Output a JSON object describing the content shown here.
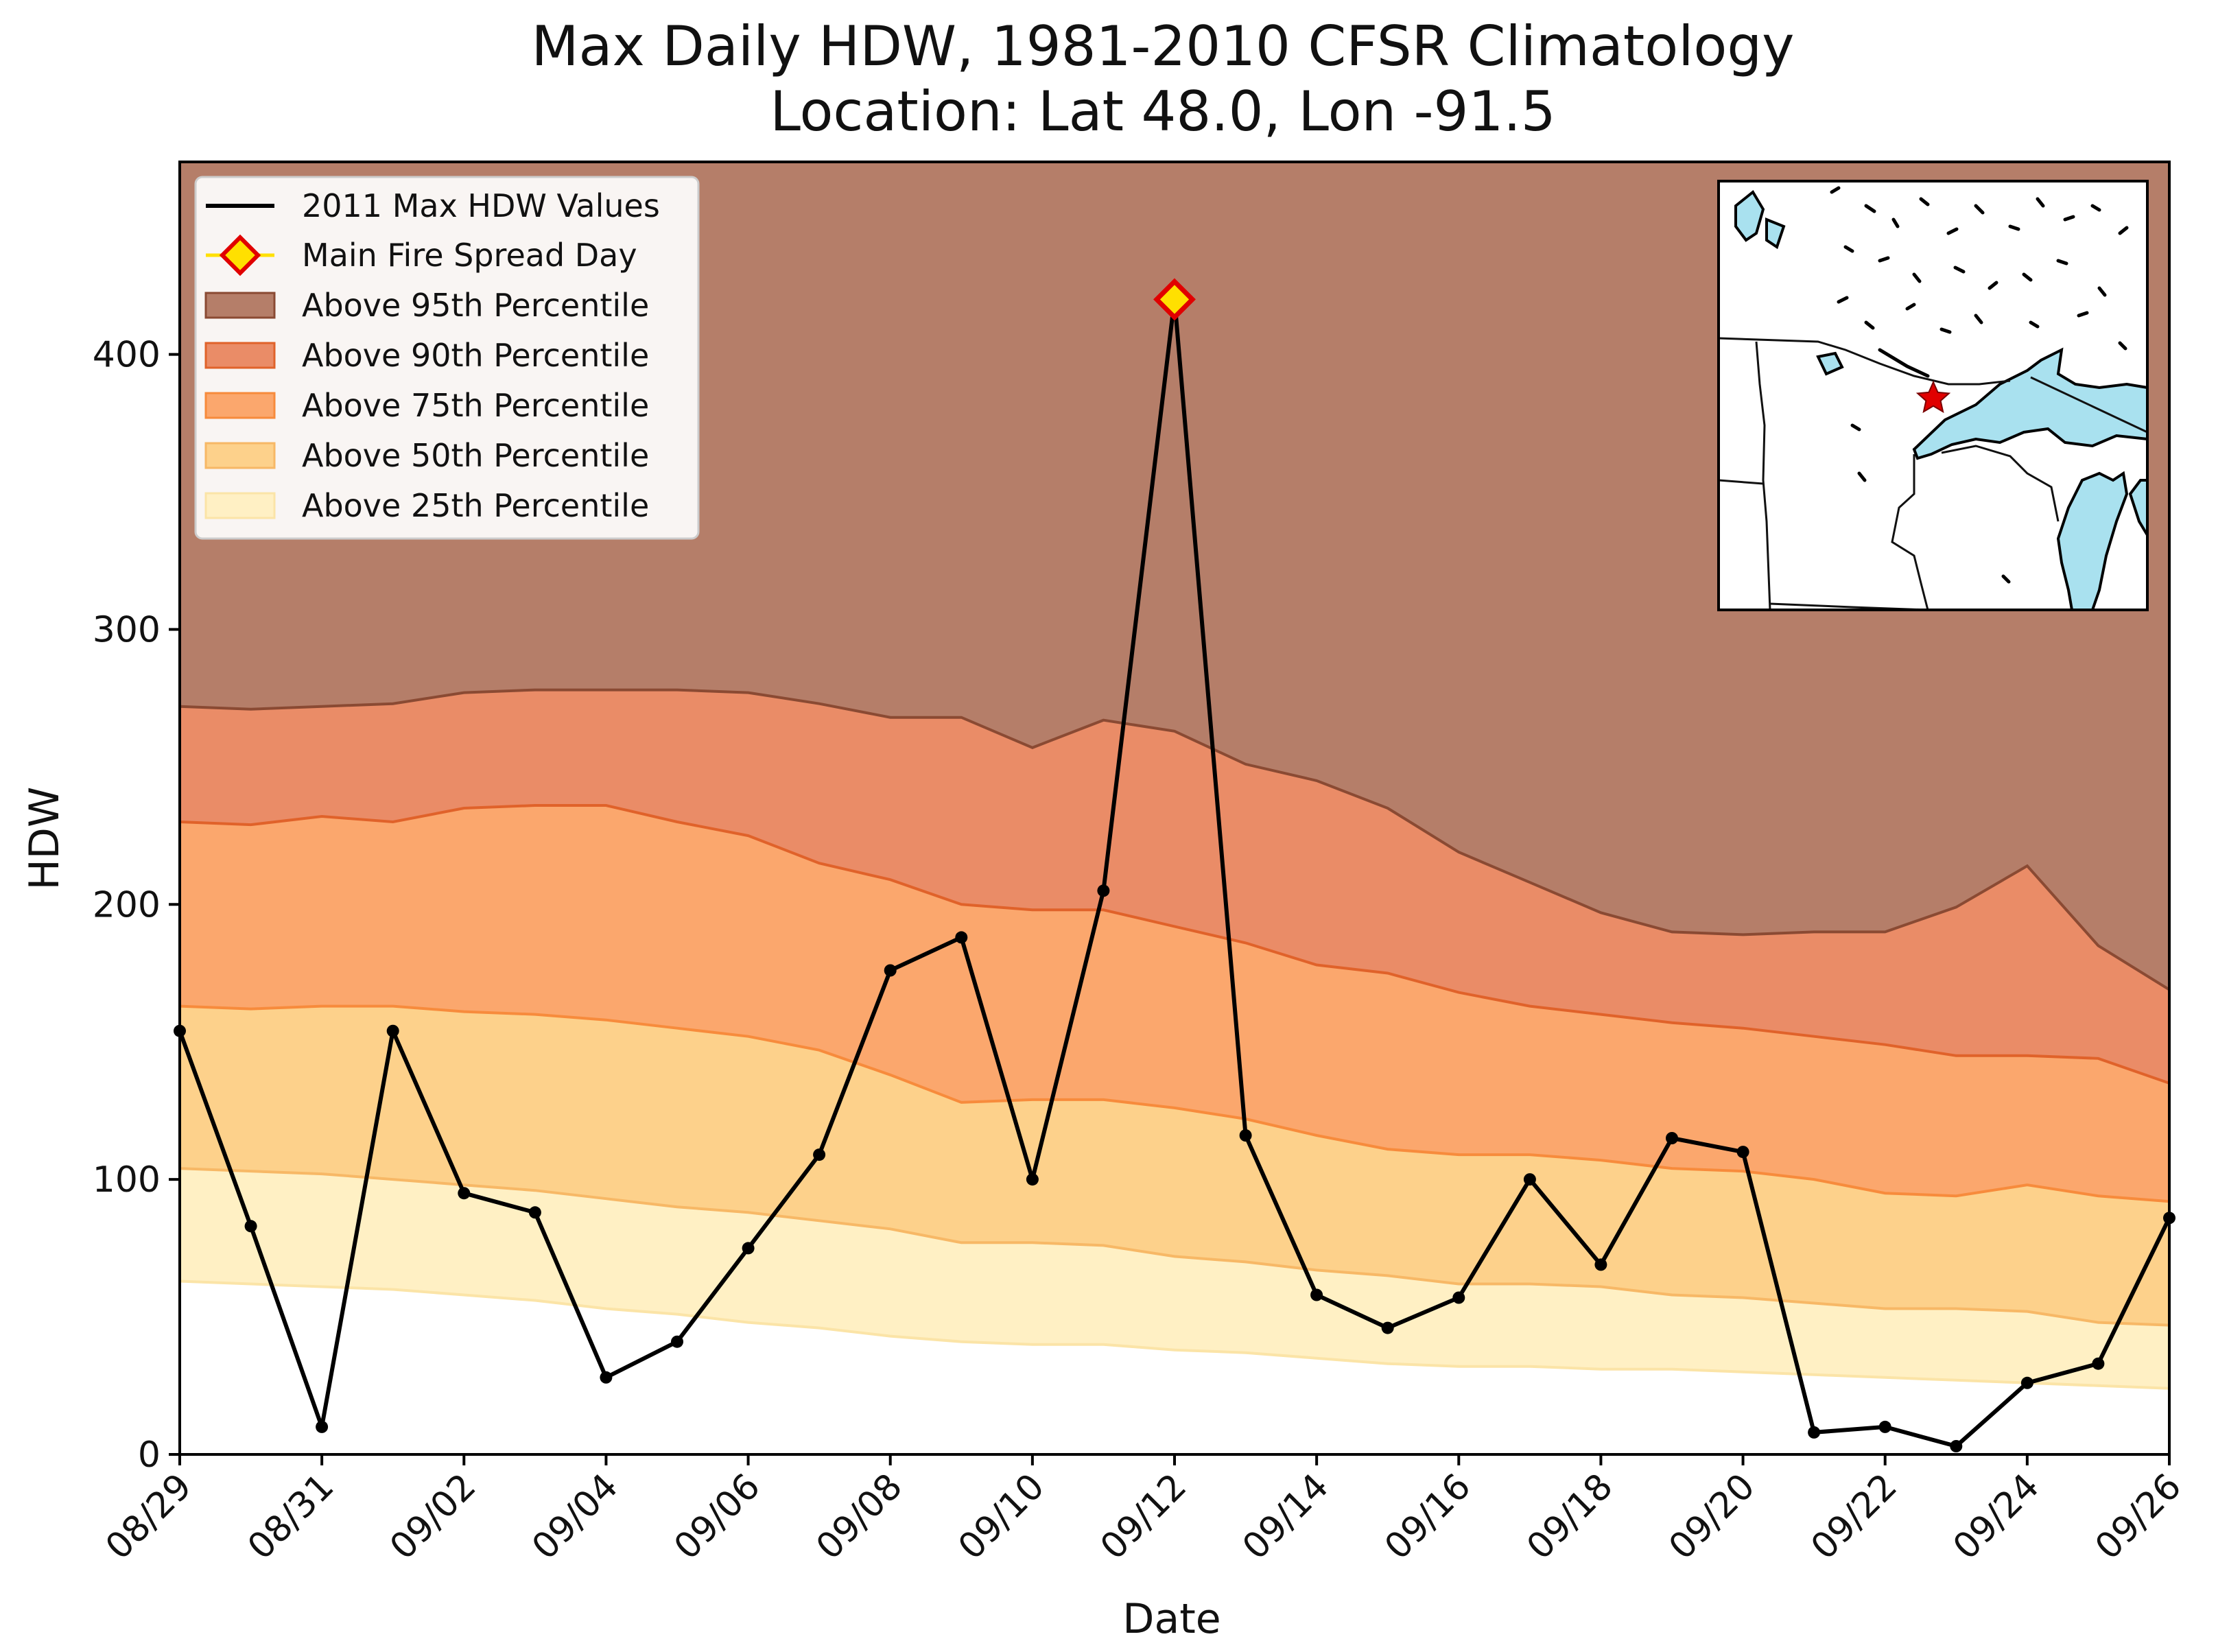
{
  "chart_data": {
    "type": "area",
    "title": "Max Daily HDW, 1981-2010 CFSR Climatology",
    "subtitle": "Location: Lat 48.0, Lon -91.5",
    "xlabel": "Date",
    "ylabel": "HDW",
    "ylim": [
      0,
      470
    ],
    "yticks": [
      0,
      100,
      200,
      300,
      400
    ],
    "dates": [
      "08/29",
      "08/30",
      "08/31",
      "09/01",
      "09/02",
      "09/03",
      "09/04",
      "09/05",
      "09/06",
      "09/07",
      "09/08",
      "09/09",
      "09/10",
      "09/11",
      "09/12",
      "09/13",
      "09/14",
      "09/15",
      "09/16",
      "09/17",
      "09/18",
      "09/19",
      "09/20",
      "09/21",
      "09/22",
      "09/23",
      "09/24",
      "09/25",
      "09/26"
    ],
    "xtick_labels": [
      "08/29",
      "08/31",
      "09/02",
      "09/04",
      "09/06",
      "09/08",
      "09/10",
      "09/12",
      "09/14",
      "09/16",
      "09/18",
      "09/20",
      "09/22",
      "09/24",
      "09/26"
    ],
    "series": [
      {
        "name": "2011 Max HDW Values",
        "values": [
          154,
          83,
          10,
          154,
          95,
          88,
          28,
          41,
          75,
          109,
          176,
          188,
          100,
          205,
          420,
          116,
          58,
          46,
          57,
          100,
          69,
          115,
          110,
          8,
          10,
          3,
          26,
          33,
          86
        ]
      }
    ],
    "percentiles": [
      {
        "name": "Above 25th Percentile",
        "values": [
          63,
          62,
          61,
          60,
          58,
          56,
          53,
          51,
          48,
          46,
          43,
          41,
          40,
          40,
          38,
          37,
          35,
          33,
          32,
          32,
          31,
          31,
          30,
          29,
          28,
          27,
          26,
          25,
          24
        ]
      },
      {
        "name": "Above 50th Percentile",
        "values": [
          104,
          103,
          102,
          100,
          98,
          96,
          93,
          90,
          88,
          85,
          82,
          77,
          77,
          76,
          72,
          70,
          67,
          65,
          62,
          62,
          61,
          58,
          57,
          55,
          53,
          53,
          52,
          48,
          47
        ]
      },
      {
        "name": "Above 75th Percentile",
        "values": [
          163,
          162,
          163,
          163,
          161,
          160,
          158,
          155,
          152,
          147,
          138,
          128,
          129,
          129,
          126,
          122,
          116,
          111,
          109,
          109,
          107,
          104,
          103,
          100,
          95,
          94,
          98,
          94,
          92
        ]
      },
      {
        "name": "Above 90th Percentile",
        "values": [
          230,
          229,
          232,
          230,
          235,
          236,
          236,
          230,
          225,
          215,
          209,
          200,
          198,
          198,
          192,
          186,
          178,
          175,
          168,
          163,
          160,
          157,
          155,
          152,
          149,
          145,
          145,
          144,
          135
        ]
      },
      {
        "name": "Above 95th Percentile",
        "values": [
          272,
          271,
          272,
          273,
          277,
          278,
          278,
          278,
          277,
          273,
          268,
          268,
          257,
          267,
          263,
          251,
          245,
          235,
          219,
          208,
          197,
          190,
          189,
          190,
          190,
          199,
          214,
          185,
          169
        ]
      }
    ],
    "highlight": {
      "name": "Main Fire Spread Day",
      "date": "09/12",
      "value": 420
    },
    "legend_position": "top-left",
    "inset": "location map with star marker"
  },
  "colors": {
    "p95": "#b57e69",
    "p90": "#ea8c67",
    "p75": "#fba76d",
    "p50": "#fdd18b",
    "p25": "#fff0c4",
    "p95_edge": "#8a4a33",
    "p90_edge": "#e0622a",
    "p75_edge": "#f78b3c",
    "p50_edge": "#f7b866",
    "p25_edge": "#fbe4a7",
    "line": "#000000",
    "marker_fill": "#ffe000",
    "marker_edge": "#e00000",
    "star": "#e00000"
  }
}
